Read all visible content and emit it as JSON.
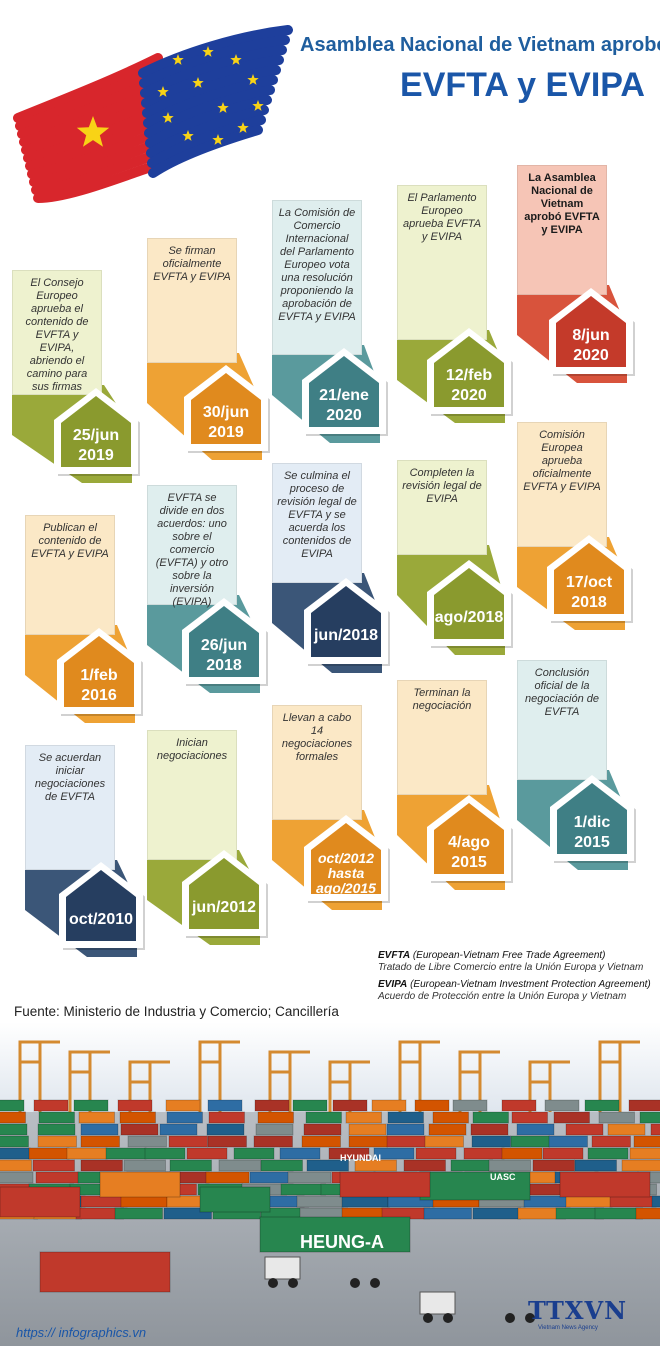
{
  "header": {
    "title_line1": "Asamblea Nacional de Vietnam aprobó",
    "title_line2": "EVFTA y EVIPA"
  },
  "colors": {
    "title_blue": "#1a56a8",
    "flag_red": "#d8262c",
    "flag_blue": "#1e3f9c",
    "star_yellow": "#f8d316",
    "olive": "#8a9a2e",
    "orange": "#e28a1e",
    "teal": "#3f7f85",
    "navy": "#253d5e",
    "red": "#c43a2a"
  },
  "milestones": [
    {
      "id": "m1",
      "text": "El Consejo Europeo aprueba el contenido de EVFTA y EVIPA, abriendo el camino para sus firmas",
      "date": "25/jun\n2019",
      "color": "olive",
      "bold": false
    },
    {
      "id": "m2",
      "text": "Se firman oficialmente EVFTA y EVIPA",
      "date": "30/jun\n2019",
      "color": "orange",
      "bold": false
    },
    {
      "id": "m3",
      "text": "La Comisión de Comercio Internacional del Parlamento Europeo vota una resolución proponiendo la aprobación de EVFTA y EVIPA",
      "date": "21/ene\n2020",
      "color": "teal",
      "bold": false
    },
    {
      "id": "m4",
      "text": "El Parlamento Europeo aprueba EVFTA y EVIPA",
      "date": "12/feb\n2020",
      "color": "olive",
      "bold": false
    },
    {
      "id": "m5",
      "text": "La Asamblea Nacional de Vietnam aprobó EVFTA y EVIPA",
      "date": "8/jun\n2020",
      "color": "red",
      "bold": true
    },
    {
      "id": "m6",
      "text": "Publican el contenido de EVFTA y EVIPA",
      "date": "1/feb\n2016",
      "color": "orange",
      "bold": false
    },
    {
      "id": "m7",
      "text": "EVFTA se divide en dos acuerdos: uno sobre el comercio (EVFTA) y otro sobre la inversión (EVIPA)",
      "date": "26/jun\n2018",
      "color": "teal",
      "bold": false
    },
    {
      "id": "m8",
      "text": "Se culmina el proceso de revisión legal de EVFTA y se acuerda los contenidos de EVIPA",
      "date": "jun/2018",
      "color": "navy",
      "bold": false
    },
    {
      "id": "m9",
      "text": "Completen la revisión legal de EVIPA",
      "date": "ago/2018",
      "color": "olive",
      "bold": false
    },
    {
      "id": "m10",
      "text": "Comisión Europea aprueba oficialmente EVFTA y EVIPA",
      "date": "17/oct\n2018",
      "color": "orange",
      "bold": false
    },
    {
      "id": "m11",
      "text": "Se acuerdan iniciar negociaciones de EVFTA",
      "date": "oct/2010",
      "color": "navy",
      "bold": false
    },
    {
      "id": "m12",
      "text": "Inician negociaciones",
      "date": "jun/2012",
      "color": "olive",
      "bold": false
    },
    {
      "id": "m13",
      "text": "Llevan a cabo 14 negociaciones formales",
      "date": "oct/2012\nhasta\nago/2015",
      "color": "orange",
      "bold": false
    },
    {
      "id": "m14",
      "text": "Terminan la negociación",
      "date": "4/ago\n2015",
      "color": "orange",
      "bold": false
    },
    {
      "id": "m15",
      "text": "Conclusión oficial de la negociación de EVFTA",
      "date": "1/dic\n2015",
      "color": "teal",
      "bold": false
    }
  ],
  "glossary": [
    {
      "abbr": "EVFTA",
      "full": "(European-Vietnam Free Trade Agreement)",
      "desc": "Tratado de Libre Comercio entre la Unión Europa y Vietnam"
    },
    {
      "abbr": "EVIPA",
      "full": "(European-Vietnam Investment Protection Agreement)",
      "desc": "Acuerdo de Protección entre la Unión Europa y Vietnam"
    }
  ],
  "footer": {
    "source": "Fuente: Ministerio de Industria y Comercio; Cancillería",
    "url": "https:// infographics.vn",
    "logo": "TTXVN",
    "logo_subtitle": "Vietnam News Agency"
  },
  "photo_labels": [
    "HYUNDAI",
    "HEUNG-A",
    "UASC"
  ]
}
